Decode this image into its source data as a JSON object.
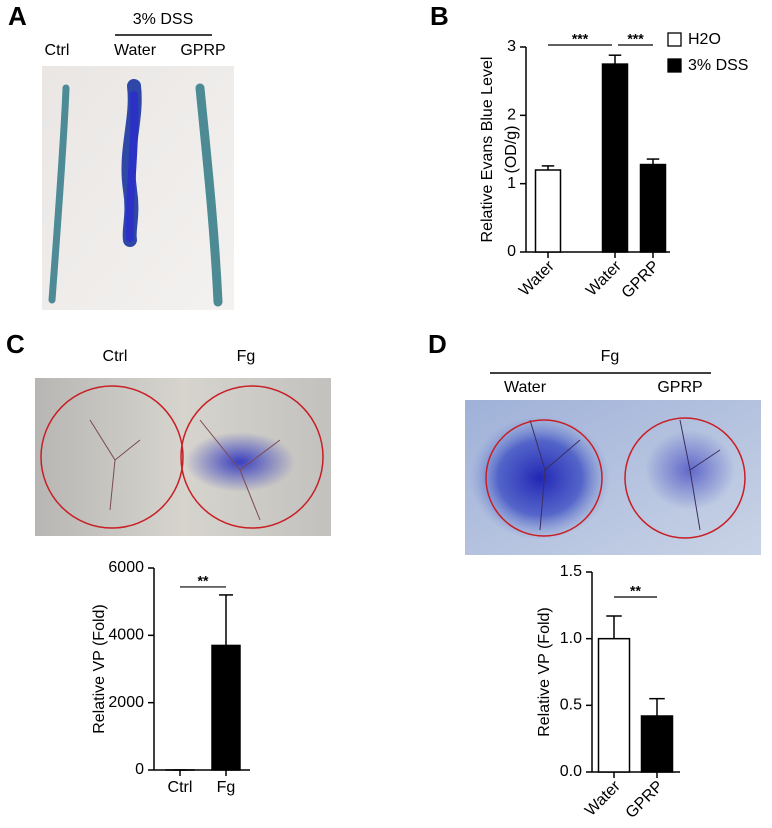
{
  "panel_labels": [
    "A",
    "B",
    "C",
    "D"
  ],
  "panel_a": {
    "header": "3% DSS",
    "labels": [
      "Ctrl",
      "Water",
      "GPRP"
    ]
  },
  "panel_c": {
    "labels": [
      "Ctrl",
      "Fg"
    ]
  },
  "panel_d": {
    "header": "Fg",
    "labels": [
      "Water",
      "GPRP"
    ]
  },
  "chart_data": [
    {
      "type": "bar",
      "ylabel": [
        "Relative Evans Blue Level",
        "(OD/g)"
      ],
      "categories": [
        "Water",
        "Water",
        "GPRP"
      ],
      "values": [
        1.2,
        2.75,
        1.28
      ],
      "errors": [
        0.06,
        0.13,
        0.08
      ],
      "colors": [
        "#ffffff",
        "#000000",
        "#000000"
      ],
      "legend": [
        {
          "name": "H2O",
          "color": "#ffffff"
        },
        {
          "name": "3% DSS",
          "color": "#000000"
        }
      ],
      "annotations": [
        {
          "text": "***",
          "from": 0,
          "to": 1
        },
        {
          "text": "***",
          "from": 1,
          "to": 2
        }
      ],
      "ylim": [
        0,
        3
      ],
      "yticks": [
        0,
        1,
        2,
        3
      ]
    },
    {
      "type": "bar",
      "ylabel": [
        "Relative VP (Fold)"
      ],
      "categories": [
        "Ctrl",
        "Fg"
      ],
      "values": [
        1,
        3700
      ],
      "errors": [
        0,
        1500
      ],
      "colors": [
        "#ffffff",
        "#000000"
      ],
      "annotations": [
        {
          "text": "**",
          "from": 0,
          "to": 1
        }
      ],
      "ylim": [
        0,
        6000
      ],
      "yticks": [
        0,
        2000,
        4000,
        6000
      ]
    },
    {
      "type": "bar",
      "ylabel": [
        "Relative VP (Fold)"
      ],
      "categories": [
        "Water",
        "GPRP"
      ],
      "values": [
        1.0,
        0.42
      ],
      "errors": [
        0.17,
        0.13
      ],
      "colors": [
        "#ffffff",
        "#000000"
      ],
      "annotations": [
        {
          "text": "**",
          "from": 0,
          "to": 1
        }
      ],
      "ylim": [
        0,
        1.5
      ],
      "yticks": [
        {
          "value": 0,
          "label": "0.0"
        },
        0.5,
        {
          "value": 1,
          "label": "1.0"
        },
        1.5
      ]
    }
  ]
}
